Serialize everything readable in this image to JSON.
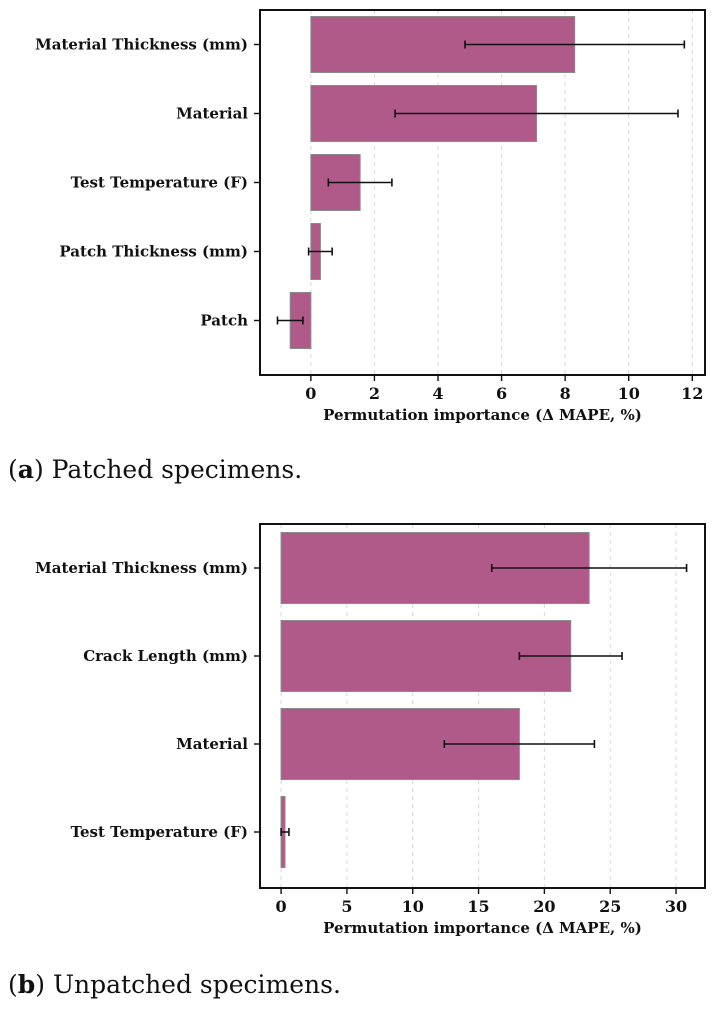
{
  "chart_data": [
    {
      "type": "bar",
      "orientation": "horizontal",
      "categories": [
        "Material Thickness (mm)",
        "Material",
        "Test Temperature (F)",
        "Patch Thickness (mm)",
        "Patch"
      ],
      "values": [
        8.3,
        7.1,
        1.55,
        0.3,
        -0.65
      ],
      "error": [
        3.45,
        4.45,
        1.0,
        0.37,
        0.4
      ],
      "xlabel": "Permutation importance (Δ MAPE, %)",
      "xlim": [
        -1.6,
        12.4
      ],
      "xticks": [
        0,
        2,
        4,
        6,
        8,
        10,
        12
      ],
      "grid": "vertical-dashed",
      "bar_color": "#b05a8a",
      "caption_prefix": "a",
      "caption_text": "Patched specimens."
    },
    {
      "type": "bar",
      "orientation": "horizontal",
      "categories": [
        "Material Thickness (mm)",
        "Crack Length (mm)",
        "Material",
        "Test Temperature (F)"
      ],
      "values": [
        23.4,
        22.0,
        18.1,
        0.3
      ],
      "error": [
        7.4,
        3.9,
        5.7,
        0.3
      ],
      "xlabel": "Permutation importance (Δ MAPE, %)",
      "xlim": [
        -1.6,
        32.2
      ],
      "xticks": [
        0,
        5,
        10,
        15,
        20,
        25,
        30
      ],
      "grid": "vertical-dashed",
      "bar_color": "#b05a8a",
      "caption_prefix": "b",
      "caption_text": "Unpatched specimens."
    }
  ]
}
